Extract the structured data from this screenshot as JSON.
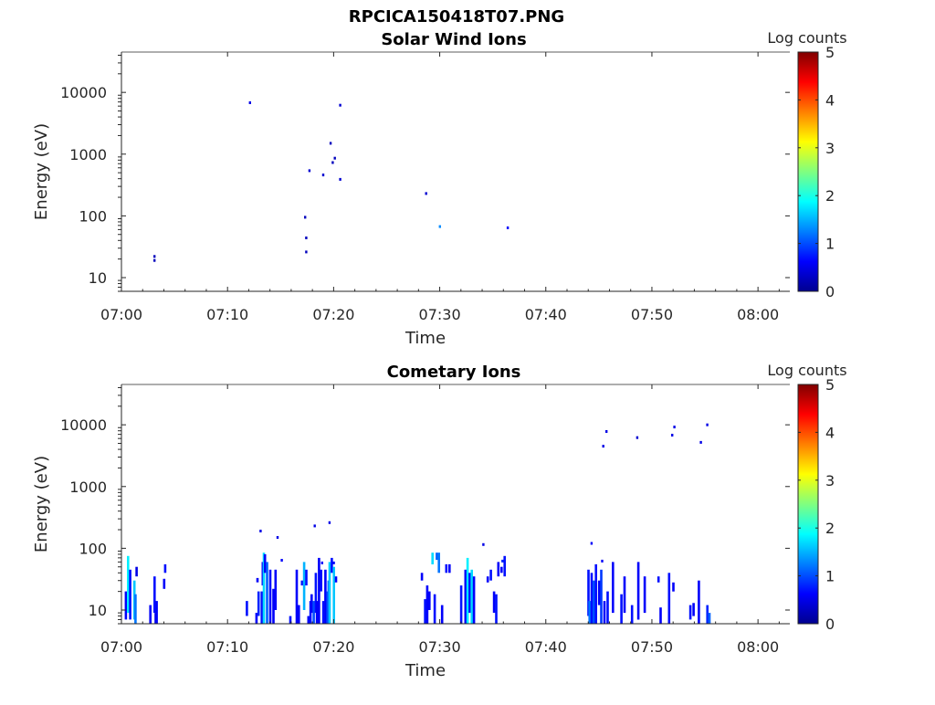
{
  "figure_title": "RPCICA150418T07.PNG",
  "chart_data": [
    {
      "type": "heatmap",
      "title": "Solar Wind Ions",
      "xlabel": "Time",
      "ylabel": "Energy (eV)",
      "y_scale": "log",
      "ylim": [
        6,
        45000
      ],
      "xlim_min": [
        0,
        63
      ],
      "x_ticks": [
        "07:00",
        "07:10",
        "07:20",
        "07:30",
        "07:40",
        "07:50",
        "08:00"
      ],
      "y_ticks": [
        "10",
        "100",
        "1000",
        "10000"
      ],
      "colorbar": {
        "label": "Log counts",
        "min": 0,
        "max": 5,
        "ticks": [
          "0",
          "1",
          "2",
          "3",
          "4",
          "5"
        ]
      },
      "cells": [
        [
          3.1,
          19,
          0.3
        ],
        [
          3.1,
          22,
          0.3
        ],
        [
          12.1,
          6800,
          0.5
        ],
        [
          17.3,
          95,
          0.3
        ],
        [
          17.4,
          44,
          0.3
        ],
        [
          17.4,
          26,
          0.3
        ],
        [
          17.7,
          540,
          0.4
        ],
        [
          19.0,
          460,
          0.4
        ],
        [
          19.7,
          1500,
          0.3
        ],
        [
          19.9,
          730,
          0.3
        ],
        [
          20.1,
          860,
          0.3
        ],
        [
          20.6,
          6200,
          0.4
        ],
        [
          20.6,
          390,
          0.4
        ],
        [
          28.7,
          230,
          0.4
        ],
        [
          30.0,
          67,
          1.3
        ],
        [
          36.4,
          64,
          0.6
        ]
      ]
    },
    {
      "type": "heatmap",
      "title": "Cometary Ions",
      "xlabel": "Time",
      "ylabel": "Energy (eV)",
      "y_scale": "log",
      "ylim": [
        6,
        45000
      ],
      "xlim_min": [
        0,
        63
      ],
      "x_ticks": [
        "07:00",
        "07:10",
        "07:20",
        "07:30",
        "07:40",
        "07:50",
        "08:00"
      ],
      "y_ticks": [
        "10",
        "100",
        "1000",
        "10000"
      ],
      "colorbar": {
        "label": "Log counts",
        "min": 0,
        "max": 5,
        "ticks": [
          "0",
          "1",
          "2",
          "3",
          "4",
          "5"
        ]
      },
      "columns": [
        {
          "t": 0.4,
          "lo": 7,
          "hi": 20,
          "v": 0.6
        },
        {
          "t": 0.6,
          "lo": 9,
          "hi": 75,
          "v": 1.8
        },
        {
          "t": 0.8,
          "lo": 7,
          "hi": 45,
          "v": 0.7
        },
        {
          "t": 1.2,
          "lo": 7,
          "hi": 30,
          "v": 1.6
        },
        {
          "t": 1.3,
          "lo": 6,
          "hi": 18,
          "v": 1.2
        },
        {
          "t": 1.4,
          "lo": 35,
          "hi": 50,
          "v": 0.5
        },
        {
          "t": 2.7,
          "lo": 6,
          "hi": 12,
          "v": 0.6
        },
        {
          "t": 3.1,
          "lo": 9,
          "hi": 35,
          "v": 0.7
        },
        {
          "t": 3.2,
          "lo": 6,
          "hi": 9,
          "v": 0.5
        },
        {
          "t": 3.3,
          "lo": 6,
          "hi": 14,
          "v": 0.6
        },
        {
          "t": 4.0,
          "lo": 22,
          "hi": 32,
          "v": 0.6
        },
        {
          "t": 4.1,
          "lo": 40,
          "hi": 55,
          "v": 0.7
        },
        {
          "t": 11.8,
          "lo": 8,
          "hi": 14,
          "v": 0.7
        },
        {
          "t": 12.7,
          "lo": 6,
          "hi": 9,
          "v": 0.6
        },
        {
          "t": 12.8,
          "lo": 28,
          "hi": 33,
          "v": 0.6
        },
        {
          "t": 12.9,
          "lo": 8,
          "hi": 20,
          "v": 0.8
        },
        {
          "t": 13.2,
          "lo": 6,
          "hi": 20,
          "v": 0.7
        },
        {
          "t": 13.3,
          "lo": 25,
          "hi": 60,
          "v": 0.6
        },
        {
          "t": 13.4,
          "lo": 6,
          "hi": 85,
          "v": 1.7
        },
        {
          "t": 13.5,
          "lo": 40,
          "hi": 80,
          "v": 0.6
        },
        {
          "t": 13.7,
          "lo": 6,
          "hi": 60,
          "v": 1.1
        },
        {
          "t": 14.0,
          "lo": 6,
          "hi": 45,
          "v": 0.7
        },
        {
          "t": 14.3,
          "lo": 6,
          "hi": 22,
          "v": 0.6
        },
        {
          "t": 14.5,
          "lo": 10,
          "hi": 45,
          "v": 0.6
        },
        {
          "t": 15.9,
          "lo": 6,
          "hi": 8,
          "v": 0.7
        },
        {
          "t": 16.5,
          "lo": 6,
          "hi": 45,
          "v": 0.6
        },
        {
          "t": 16.7,
          "lo": 6,
          "hi": 12,
          "v": 0.6
        },
        {
          "t": 17.0,
          "lo": 25,
          "hi": 30,
          "v": 0.7
        },
        {
          "t": 17.2,
          "lo": 10,
          "hi": 60,
          "v": 1.5
        },
        {
          "t": 17.4,
          "lo": 25,
          "hi": 45,
          "v": 0.7
        },
        {
          "t": 17.6,
          "lo": 6,
          "hi": 8,
          "v": 0.6
        },
        {
          "t": 17.8,
          "lo": 6,
          "hi": 14,
          "v": 0.7
        },
        {
          "t": 17.9,
          "lo": 9,
          "hi": 18,
          "v": 0.6
        },
        {
          "t": 18.1,
          "lo": 6,
          "hi": 14,
          "v": 1.0
        },
        {
          "t": 18.3,
          "lo": 9,
          "hi": 40,
          "v": 0.7
        },
        {
          "t": 18.4,
          "lo": 6,
          "hi": 14,
          "v": 0.6
        },
        {
          "t": 18.6,
          "lo": 6,
          "hi": 70,
          "v": 0.6
        },
        {
          "t": 18.8,
          "lo": 20,
          "hi": 45,
          "v": 0.7
        },
        {
          "t": 19.0,
          "lo": 6,
          "hi": 14,
          "v": 0.7
        },
        {
          "t": 19.2,
          "lo": 6,
          "hi": 45,
          "v": 0.6
        },
        {
          "t": 19.4,
          "lo": 6,
          "hi": 20,
          "v": 1.0
        },
        {
          "t": 19.5,
          "lo": 10,
          "hi": 30,
          "v": 1.1
        },
        {
          "t": 19.6,
          "lo": 6,
          "hi": 60,
          "v": 1.6
        },
        {
          "t": 19.8,
          "lo": 40,
          "hi": 70,
          "v": 0.7
        },
        {
          "t": 20.0,
          "lo": 6,
          "hi": 50,
          "v": 1.6
        },
        {
          "t": 20.2,
          "lo": 28,
          "hi": 35,
          "v": 0.6
        },
        {
          "t": 28.3,
          "lo": 30,
          "hi": 40,
          "v": 0.6
        },
        {
          "t": 28.6,
          "lo": 6,
          "hi": 15,
          "v": 0.7
        },
        {
          "t": 28.8,
          "lo": 6,
          "hi": 25,
          "v": 0.6
        },
        {
          "t": 29.0,
          "lo": 10,
          "hi": 20,
          "v": 0.6
        },
        {
          "t": 29.3,
          "lo": 55,
          "hi": 85,
          "v": 1.7
        },
        {
          "t": 29.5,
          "lo": 6,
          "hi": 18,
          "v": 0.7
        },
        {
          "t": 29.7,
          "lo": 65,
          "hi": 85,
          "v": 1.1
        },
        {
          "t": 29.9,
          "lo": 40,
          "hi": 85,
          "v": 1.2
        },
        {
          "t": 30.2,
          "lo": 6,
          "hi": 12,
          "v": 0.6
        },
        {
          "t": 30.6,
          "lo": 40,
          "hi": 55,
          "v": 0.7
        },
        {
          "t": 30.9,
          "lo": 40,
          "hi": 55,
          "v": 0.6
        },
        {
          "t": 32.0,
          "lo": 6,
          "hi": 25,
          "v": 0.7
        },
        {
          "t": 32.4,
          "lo": 6,
          "hi": 45,
          "v": 0.6
        },
        {
          "t": 32.6,
          "lo": 6,
          "hi": 70,
          "v": 1.8
        },
        {
          "t": 32.8,
          "lo": 9,
          "hi": 40,
          "v": 0.7
        },
        {
          "t": 33.0,
          "lo": 6,
          "hi": 45,
          "v": 1.7
        },
        {
          "t": 33.2,
          "lo": 6,
          "hi": 35,
          "v": 0.6
        },
        {
          "t": 34.5,
          "lo": 28,
          "hi": 35,
          "v": 0.6
        },
        {
          "t": 34.8,
          "lo": 30,
          "hi": 45,
          "v": 0.7
        },
        {
          "t": 35.1,
          "lo": 9,
          "hi": 20,
          "v": 0.6
        },
        {
          "t": 35.3,
          "lo": 6,
          "hi": 18,
          "v": 0.7
        },
        {
          "t": 35.5,
          "lo": 35,
          "hi": 60,
          "v": 0.6
        },
        {
          "t": 35.8,
          "lo": 40,
          "hi": 50,
          "v": 0.6
        },
        {
          "t": 36.1,
          "lo": 35,
          "hi": 75,
          "v": 0.7
        },
        {
          "t": 44.0,
          "lo": 8,
          "hi": 45,
          "v": 0.7
        },
        {
          "t": 44.1,
          "lo": 6,
          "hi": 14,
          "v": 1.2
        },
        {
          "t": 44.3,
          "lo": 6,
          "hi": 40,
          "v": 0.7
        },
        {
          "t": 44.5,
          "lo": 6,
          "hi": 30,
          "v": 1.0
        },
        {
          "t": 44.7,
          "lo": 6,
          "hi": 55,
          "v": 0.7
        },
        {
          "t": 45.0,
          "lo": 12,
          "hi": 30,
          "v": 0.6
        },
        {
          "t": 45.2,
          "lo": 6,
          "hi": 45,
          "v": 0.9
        },
        {
          "t": 45.5,
          "lo": 6,
          "hi": 14,
          "v": 0.6
        },
        {
          "t": 45.8,
          "lo": 6,
          "hi": 20,
          "v": 0.7
        },
        {
          "t": 46.3,
          "lo": 9,
          "hi": 60,
          "v": 0.6
        },
        {
          "t": 47.1,
          "lo": 6,
          "hi": 18,
          "v": 0.7
        },
        {
          "t": 47.4,
          "lo": 9,
          "hi": 35,
          "v": 0.6
        },
        {
          "t": 48.1,
          "lo": 6,
          "hi": 12,
          "v": 0.7
        },
        {
          "t": 48.7,
          "lo": 7,
          "hi": 60,
          "v": 0.6
        },
        {
          "t": 49.3,
          "lo": 9,
          "hi": 35,
          "v": 0.6
        },
        {
          "t": 50.6,
          "lo": 28,
          "hi": 35,
          "v": 0.7
        },
        {
          "t": 50.8,
          "lo": 6,
          "hi": 11,
          "v": 0.6
        },
        {
          "t": 51.6,
          "lo": 6,
          "hi": 40,
          "v": 0.7
        },
        {
          "t": 52.0,
          "lo": 20,
          "hi": 28,
          "v": 0.6
        },
        {
          "t": 53.6,
          "lo": 7,
          "hi": 12,
          "v": 0.7
        },
        {
          "t": 53.9,
          "lo": 8,
          "hi": 13,
          "v": 0.6
        },
        {
          "t": 54.4,
          "lo": 6,
          "hi": 30,
          "v": 0.6
        },
        {
          "t": 55.2,
          "lo": 6,
          "hi": 12,
          "v": 0.8
        },
        {
          "t": 55.4,
          "lo": 6,
          "hi": 9,
          "v": 1.1
        }
      ],
      "cells": [
        [
          13.1,
          190,
          0.5
        ],
        [
          14.7,
          150,
          0.5
        ],
        [
          15.1,
          64,
          0.6
        ],
        [
          18.2,
          230,
          0.5
        ],
        [
          19.6,
          260,
          0.5
        ],
        [
          18.9,
          58,
          0.6
        ],
        [
          20.0,
          58,
          0.6
        ],
        [
          34.1,
          115,
          0.5
        ],
        [
          35.9,
          62,
          0.8
        ],
        [
          44.3,
          120,
          0.6
        ],
        [
          45.3,
          62,
          0.6
        ],
        [
          45.4,
          4500,
          0.5
        ],
        [
          45.7,
          7800,
          0.5
        ],
        [
          48.6,
          6200,
          0.4
        ],
        [
          51.9,
          6800,
          0.5
        ],
        [
          52.1,
          9200,
          0.5
        ],
        [
          54.6,
          5200,
          0.5
        ],
        [
          55.2,
          10000,
          0.5
        ]
      ]
    }
  ]
}
